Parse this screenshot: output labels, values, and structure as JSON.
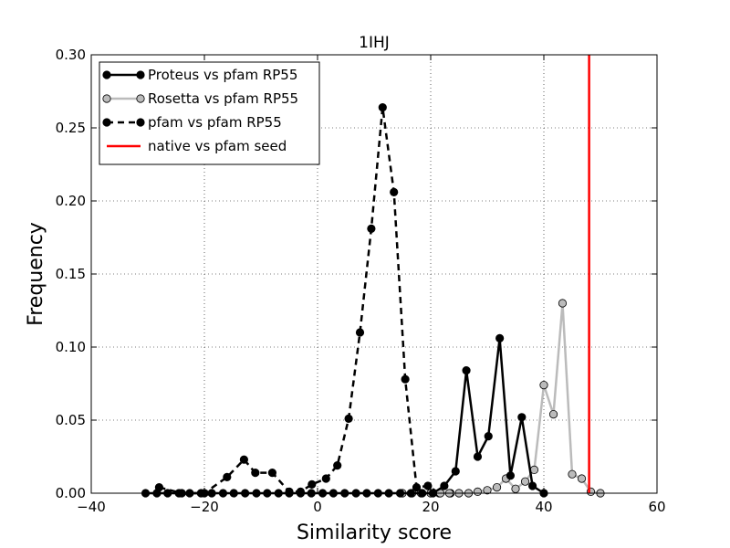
{
  "chart_data": {
    "type": "line",
    "title": "1IHJ",
    "xlabel": "Similarity score",
    "ylabel": "Frequency",
    "xlim": [
      -40,
      60
    ],
    "ylim": [
      0,
      0.3
    ],
    "xticks": [
      "−40",
      "−20",
      "0",
      "20",
      "40",
      "60"
    ],
    "xtick_values": [
      -40,
      -20,
      0,
      20,
      40,
      60
    ],
    "yticks": [
      "0.00",
      "0.05",
      "0.10",
      "0.15",
      "0.20",
      "0.25",
      "0.30"
    ],
    "ytick_values": [
      0,
      0.05,
      0.1,
      0.15,
      0.2,
      0.25,
      0.3
    ],
    "grid": true,
    "legend_position": "top-left",
    "series": [
      {
        "name": "Proteus vs pfam RP55",
        "color": "#000000",
        "line_style": "solid",
        "marker_fill": "#000000",
        "x": [
          -30.4,
          -28.4,
          -26.5,
          -24.5,
          -22.6,
          -20.6,
          -18.7,
          -16.7,
          -14.8,
          -12.8,
          -10.8,
          -8.9,
          -6.9,
          -5.0,
          -3.0,
          -1.1,
          0.9,
          2.8,
          4.8,
          6.8,
          8.7,
          10.7,
          12.6,
          14.6,
          16.5,
          18.5,
          20.4,
          22.4,
          24.4,
          26.3,
          28.3,
          30.2,
          32.2,
          34.1,
          36.1,
          38.0,
          40.0
        ],
        "y": [
          0.0,
          0.0,
          0.0,
          0.0,
          0.0,
          0.0,
          0.0,
          0.0,
          0.0,
          0.0,
          0.0,
          0.0,
          0.0,
          0.0,
          0.0,
          0.0,
          0.0,
          0.0,
          0.0,
          0.0,
          0.0,
          0.0,
          0.0,
          0.0,
          0.0,
          0.0,
          0.0,
          0.005,
          0.015,
          0.084,
          0.025,
          0.039,
          0.106,
          0.012,
          0.052,
          0.005,
          0.0
        ]
      },
      {
        "name": "Rosetta vs pfam RP55",
        "color": "#bbbbbb",
        "line_style": "solid",
        "marker_fill": "#bbbbbb",
        "x": [
          15.0,
          16.7,
          18.3,
          20.0,
          21.7,
          23.3,
          25.0,
          26.7,
          28.3,
          30.0,
          31.7,
          33.3,
          35.0,
          36.7,
          38.3,
          40.0,
          41.7,
          43.3,
          45.0,
          46.7,
          48.3,
          50.0
        ],
        "y": [
          0.0,
          0.0,
          0.0,
          0.0,
          0.0,
          0.0,
          0.0,
          0.0,
          0.001,
          0.002,
          0.004,
          0.01,
          0.003,
          0.008,
          0.016,
          0.074,
          0.054,
          0.13,
          0.013,
          0.01,
          0.001,
          0.0
        ]
      },
      {
        "name": "pfam vs pfam RP55",
        "color": "#000000",
        "line_style": "dashed",
        "marker_fill": "#000000",
        "x": [
          -28.0,
          -24.0,
          -20.0,
          -16.0,
          -13.0,
          -11.0,
          -8.0,
          -5.0,
          -3.0,
          -1.0,
          1.5,
          3.5,
          5.5,
          7.5,
          9.5,
          11.5,
          13.5,
          15.5,
          17.5,
          19.5,
          21.5,
          23.5
        ],
        "y": [
          0.004,
          0.0,
          0.0,
          0.011,
          0.023,
          0.014,
          0.014,
          0.001,
          0.001,
          0.006,
          0.01,
          0.019,
          0.051,
          0.11,
          0.181,
          0.264,
          0.206,
          0.078,
          0.004,
          0.005,
          0.0,
          0.0
        ]
      },
      {
        "name": "native vs pfam seed",
        "color": "#ff0000",
        "line_style": "vertical",
        "x_value": 48.0
      }
    ]
  }
}
